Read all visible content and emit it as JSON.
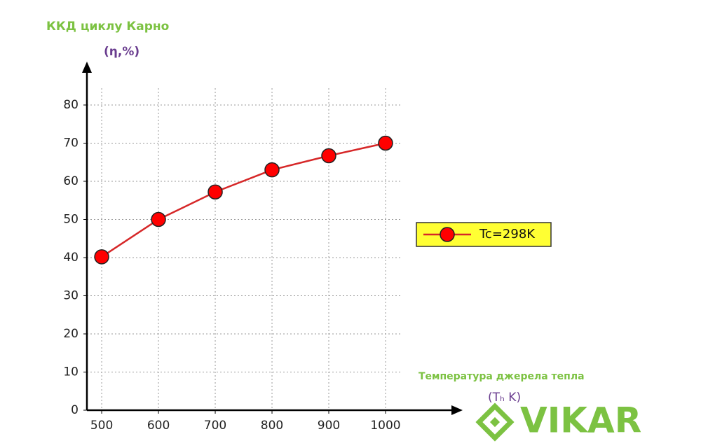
{
  "chart_data": {
    "type": "line",
    "title": "ККД циклу Карно",
    "ylabel": "(η,%)",
    "xlabel": "(Tₕ K)",
    "annotation": "Температура джерела тепла",
    "x": [
      500,
      600,
      700,
      800,
      900,
      1000
    ],
    "series": [
      {
        "name": "Tc=298K",
        "color": "#d62728",
        "values": [
          40.2,
          50,
          57.2,
          63,
          66.7,
          70
        ]
      }
    ],
    "xlim": [
      474,
      1000
    ],
    "xticks": [
      500,
      600,
      700,
      800,
      900,
      1000
    ],
    "ylim": [
      0,
      80
    ],
    "yticks": [
      0,
      10,
      20,
      30,
      40,
      50,
      60,
      70,
      80
    ],
    "grid": true,
    "legend": "right"
  },
  "logo": "VIKAR"
}
